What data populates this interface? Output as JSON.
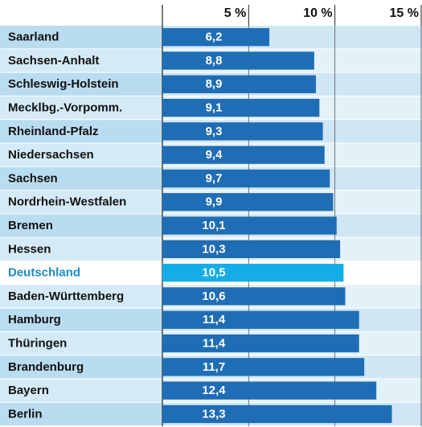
{
  "chart_data": {
    "type": "barh",
    "categories": [
      "Saarland",
      "Sachsen-Anhalt",
      "Schleswig-Holstein",
      "Mecklbg.-Vorpomm.",
      "Rheinland-Pfalz",
      "Niedersachsen",
      "Sachsen",
      "Nordrhein-Westfalen",
      "Bremen",
      "Hessen",
      "Deutschland",
      "Baden-Württemberg",
      "Hamburg",
      "Thüringen",
      "Brandenburg",
      "Bayern",
      "Berlin"
    ],
    "values": [
      6.2,
      8.8,
      8.9,
      9.1,
      9.3,
      9.4,
      9.7,
      9.9,
      10.1,
      10.3,
      10.5,
      10.6,
      11.4,
      11.4,
      11.7,
      12.4,
      13.3
    ],
    "value_labels": [
      "6,2",
      "8,8",
      "8,9",
      "9,1",
      "9,3",
      "9,4",
      "9,7",
      "9,9",
      "10,1",
      "10,3",
      "10,5",
      "10,6",
      "11,4",
      "11,4",
      "11,7",
      "12,4",
      "13,3"
    ],
    "color": "#1f6db4",
    "colors": [
      "#1f6db4",
      "#1f6db4",
      "#1f6db4",
      "#1f6db4",
      "#1f6db4",
      "#1f6db4",
      "#1f6db4",
      "#1f6db4",
      "#1f6db4",
      "#1f6db4",
      "#15ade8",
      "#1f6db4",
      "#1f6db4",
      "#1f6db4",
      "#1f6db4",
      "#1f6db4",
      "#1f6db4"
    ],
    "xlim": [
      0,
      15
    ],
    "xticks": [
      {
        "value": 5,
        "label": "5 %"
      },
      {
        "value": 10,
        "label": "10 %"
      },
      {
        "value": 15,
        "label": "15 %"
      }
    ],
    "grid": true
  }
}
